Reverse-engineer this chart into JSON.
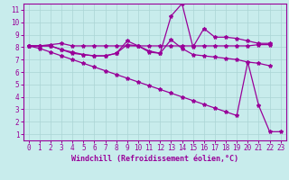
{
  "xlabel": "Windchill (Refroidissement éolien,°C)",
  "bg_color": "#c8ecec",
  "grid_color": "#aad4d4",
  "line_color": "#990099",
  "xlim": [
    -0.5,
    23.5
  ],
  "ylim": [
    0.5,
    11.5
  ],
  "xticks": [
    0,
    1,
    2,
    3,
    4,
    5,
    6,
    7,
    8,
    9,
    10,
    11,
    12,
    13,
    14,
    15,
    16,
    17,
    18,
    19,
    20,
    21,
    22,
    23
  ],
  "yticks": [
    1,
    2,
    3,
    4,
    5,
    6,
    7,
    8,
    9,
    10,
    11
  ],
  "line1_x": [
    0,
    1,
    2,
    3,
    4,
    5,
    6,
    7,
    8,
    9,
    10,
    11,
    12,
    13,
    14,
    15,
    16,
    17,
    18,
    19,
    20,
    21,
    22
  ],
  "line1_y": [
    8.1,
    8.1,
    8.2,
    8.3,
    8.1,
    8.1,
    8.1,
    8.1,
    8.1,
    8.1,
    8.1,
    8.1,
    8.1,
    8.1,
    8.1,
    8.1,
    8.1,
    8.1,
    8.1,
    8.1,
    8.1,
    8.2,
    8.2
  ],
  "line2_x": [
    0,
    1,
    2,
    3,
    4,
    5,
    6,
    7,
    8,
    9,
    10,
    11,
    12,
    13,
    14,
    15,
    16,
    17,
    18,
    19,
    20,
    21,
    22
  ],
  "line2_y": [
    8.1,
    8.1,
    8.1,
    7.8,
    7.6,
    7.4,
    7.3,
    7.3,
    7.5,
    8.2,
    8.1,
    7.7,
    7.5,
    8.6,
    7.9,
    7.4,
    7.3,
    7.2,
    7.1,
    7.0,
    6.8,
    6.7,
    6.5
  ],
  "line3_x": [
    0,
    1,
    2,
    3,
    4,
    5,
    6,
    7,
    8,
    9,
    10,
    11,
    12,
    13,
    14,
    15,
    16,
    17,
    18,
    19,
    20,
    21,
    22
  ],
  "line3_y": [
    8.1,
    8.1,
    8.1,
    7.8,
    7.5,
    7.4,
    7.3,
    7.3,
    7.5,
    8.5,
    8.1,
    7.6,
    7.5,
    10.5,
    11.5,
    8.0,
    9.5,
    8.8,
    8.8,
    8.7,
    8.5,
    8.3,
    8.3
  ],
  "line4_x": [
    0,
    1,
    2,
    3,
    4,
    5,
    6,
    7,
    8,
    9,
    10,
    11,
    12,
    13,
    14,
    15,
    16,
    17,
    18,
    19,
    20,
    21,
    22,
    23
  ],
  "line4_y": [
    8.1,
    7.9,
    7.6,
    7.3,
    7.0,
    6.7,
    6.4,
    6.1,
    5.8,
    5.5,
    5.2,
    4.9,
    4.6,
    4.3,
    4.0,
    3.7,
    3.4,
    3.1,
    2.8,
    2.5,
    6.8,
    3.3,
    1.2,
    1.2
  ],
  "marker": "*",
  "markersize": 3,
  "linewidth": 0.9,
  "tick_fontsize": 5.5,
  "label_fontsize": 6
}
